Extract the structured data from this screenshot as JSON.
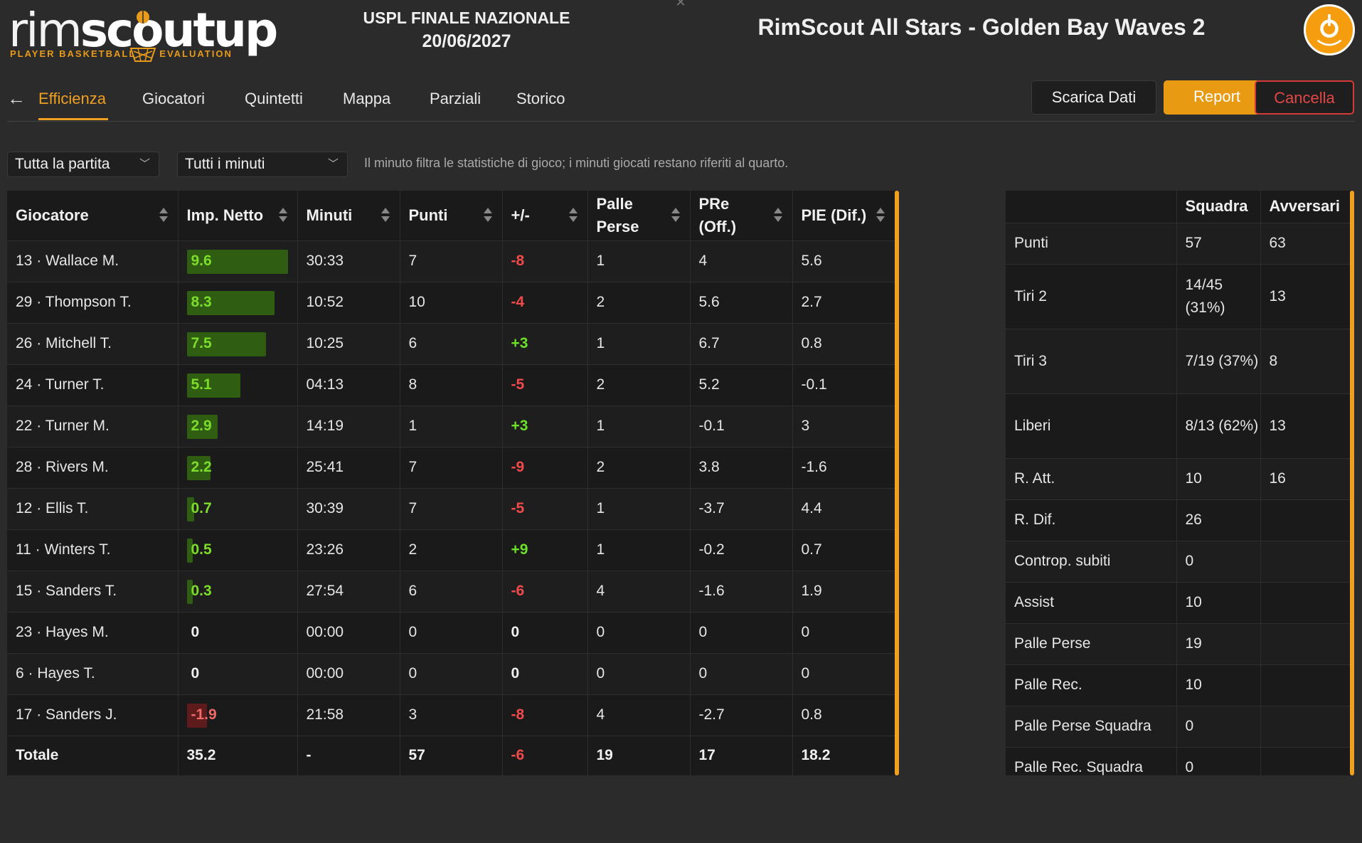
{
  "brand": {
    "logo_thin": "rim",
    "logo_bold": "scoutup",
    "logo_sub_left": "PLAYER BASKETBALL",
    "logo_sub_right": "EVALUATION",
    "accent": "#f0a020"
  },
  "event": {
    "title": "USPL FINALE NAZIONALE",
    "date": "20/06/2027"
  },
  "match_title": "RimScout All Stars - Golden Bay Waves 2",
  "nav": {
    "tabs": [
      "Efficienza",
      "Giocatori",
      "Quintetti",
      "Mappa",
      "Parziali",
      "Storico"
    ],
    "active": "Efficienza"
  },
  "actions": {
    "download": "Scarica Dati",
    "report": "Report",
    "cancel": "Cancella"
  },
  "filters": {
    "period": "Tutta la partita",
    "minutes": "Tutti i minuti",
    "note": "Il minuto filtra le statistiche di gioco; i minuti giocati restano riferiti al quarto."
  },
  "main_table": {
    "headers": [
      "Giocatore",
      "Imp. Netto",
      "Minuti",
      "Punti",
      "+/-",
      "Palle Perse",
      "PRe (Off.)",
      "PIE (Dif.)"
    ],
    "header_lines": {
      "palle_perse": [
        "Palle",
        "Perse"
      ],
      "pre_off": [
        "PRe",
        "(Off.)"
      ]
    },
    "rows": [
      {
        "player": "13 · Wallace M.",
        "imp": "9.6",
        "imp_value": 9.6,
        "min": "30:33",
        "pts": "7",
        "pm": "-8",
        "pp": "1",
        "pre": "4",
        "pie": "5.6"
      },
      {
        "player": "29 · Thompson T.",
        "imp": "8.3",
        "imp_value": 8.3,
        "min": "10:52",
        "pts": "10",
        "pm": "-4",
        "pp": "2",
        "pre": "5.6",
        "pie": "2.7"
      },
      {
        "player": "26 · Mitchell T.",
        "imp": "7.5",
        "imp_value": 7.5,
        "min": "10:25",
        "pts": "6",
        "pm": "+3",
        "pp": "1",
        "pre": "6.7",
        "pie": "0.8"
      },
      {
        "player": "24 · Turner T.",
        "imp": "5.1",
        "imp_value": 5.1,
        "min": "04:13",
        "pts": "8",
        "pm": "-5",
        "pp": "2",
        "pre": "5.2",
        "pie": "-0.1"
      },
      {
        "player": "22 · Turner M.",
        "imp": "2.9",
        "imp_value": 2.9,
        "min": "14:19",
        "pts": "1",
        "pm": "+3",
        "pp": "1",
        "pre": "-0.1",
        "pie": "3"
      },
      {
        "player": "28 · Rivers M.",
        "imp": "2.2",
        "imp_value": 2.2,
        "min": "25:41",
        "pts": "7",
        "pm": "-9",
        "pp": "2",
        "pre": "3.8",
        "pie": "-1.6"
      },
      {
        "player": "12 · Ellis T.",
        "imp": "0.7",
        "imp_value": 0.7,
        "min": "30:39",
        "pts": "7",
        "pm": "-5",
        "pp": "1",
        "pre": "-3.7",
        "pie": "4.4"
      },
      {
        "player": "11 · Winters T.",
        "imp": "0.5",
        "imp_value": 0.5,
        "min": "23:26",
        "pts": "2",
        "pm": "+9",
        "pp": "1",
        "pre": "-0.2",
        "pie": "0.7"
      },
      {
        "player": "15 · Sanders T.",
        "imp": "0.3",
        "imp_value": 0.3,
        "min": "27:54",
        "pts": "6",
        "pm": "-6",
        "pp": "4",
        "pre": "-1.6",
        "pie": "1.9"
      },
      {
        "player": "23 · Hayes M.",
        "imp": "0",
        "imp_value": 0,
        "min": "00:00",
        "pts": "0",
        "pm": "0",
        "pp": "0",
        "pre": "0",
        "pie": "0"
      },
      {
        "player": "6 · Hayes T.",
        "imp": "0",
        "imp_value": 0,
        "min": "00:00",
        "pts": "0",
        "pm": "0",
        "pp": "0",
        "pre": "0",
        "pie": "0"
      },
      {
        "player": "17 · Sanders J.",
        "imp": "-1.9",
        "imp_value": -1.9,
        "min": "21:58",
        "pts": "3",
        "pm": "-8",
        "pp": "4",
        "pre": "-2.7",
        "pie": "0.8"
      }
    ],
    "total": {
      "player": "Totale",
      "imp": "35.2",
      "min": "-",
      "pts": "57",
      "pm": "-6",
      "pp": "19",
      "pre": "17",
      "pie": "18.2"
    }
  },
  "side_table": {
    "headers": [
      "",
      "Squadra",
      "Avversari"
    ],
    "rows": [
      {
        "label": "Punti",
        "team": "57",
        "opp": "63"
      },
      {
        "label": "Tiri 2",
        "team": "14/45 (31%)",
        "opp": "13"
      },
      {
        "label": "Tiri 3",
        "team": "7/19 (37%)",
        "opp": "8"
      },
      {
        "label": "Liberi",
        "team": "8/13 (62%)",
        "opp": "13"
      },
      {
        "label": "R. Att.",
        "team": "10",
        "opp": "16"
      },
      {
        "label": "R. Dif.",
        "team": "26",
        "opp": ""
      },
      {
        "label": "Controp. subiti",
        "team": "0",
        "opp": ""
      },
      {
        "label": "Assist",
        "team": "10",
        "opp": ""
      },
      {
        "label": "Palle Perse",
        "team": "19",
        "opp": ""
      },
      {
        "label": "Palle Rec.",
        "team": "10",
        "opp": ""
      },
      {
        "label": "Palle Perse Squadra",
        "team": "0",
        "opp": ""
      },
      {
        "label": "Palle Rec. Squadra",
        "team": "0",
        "opp": ""
      }
    ]
  }
}
